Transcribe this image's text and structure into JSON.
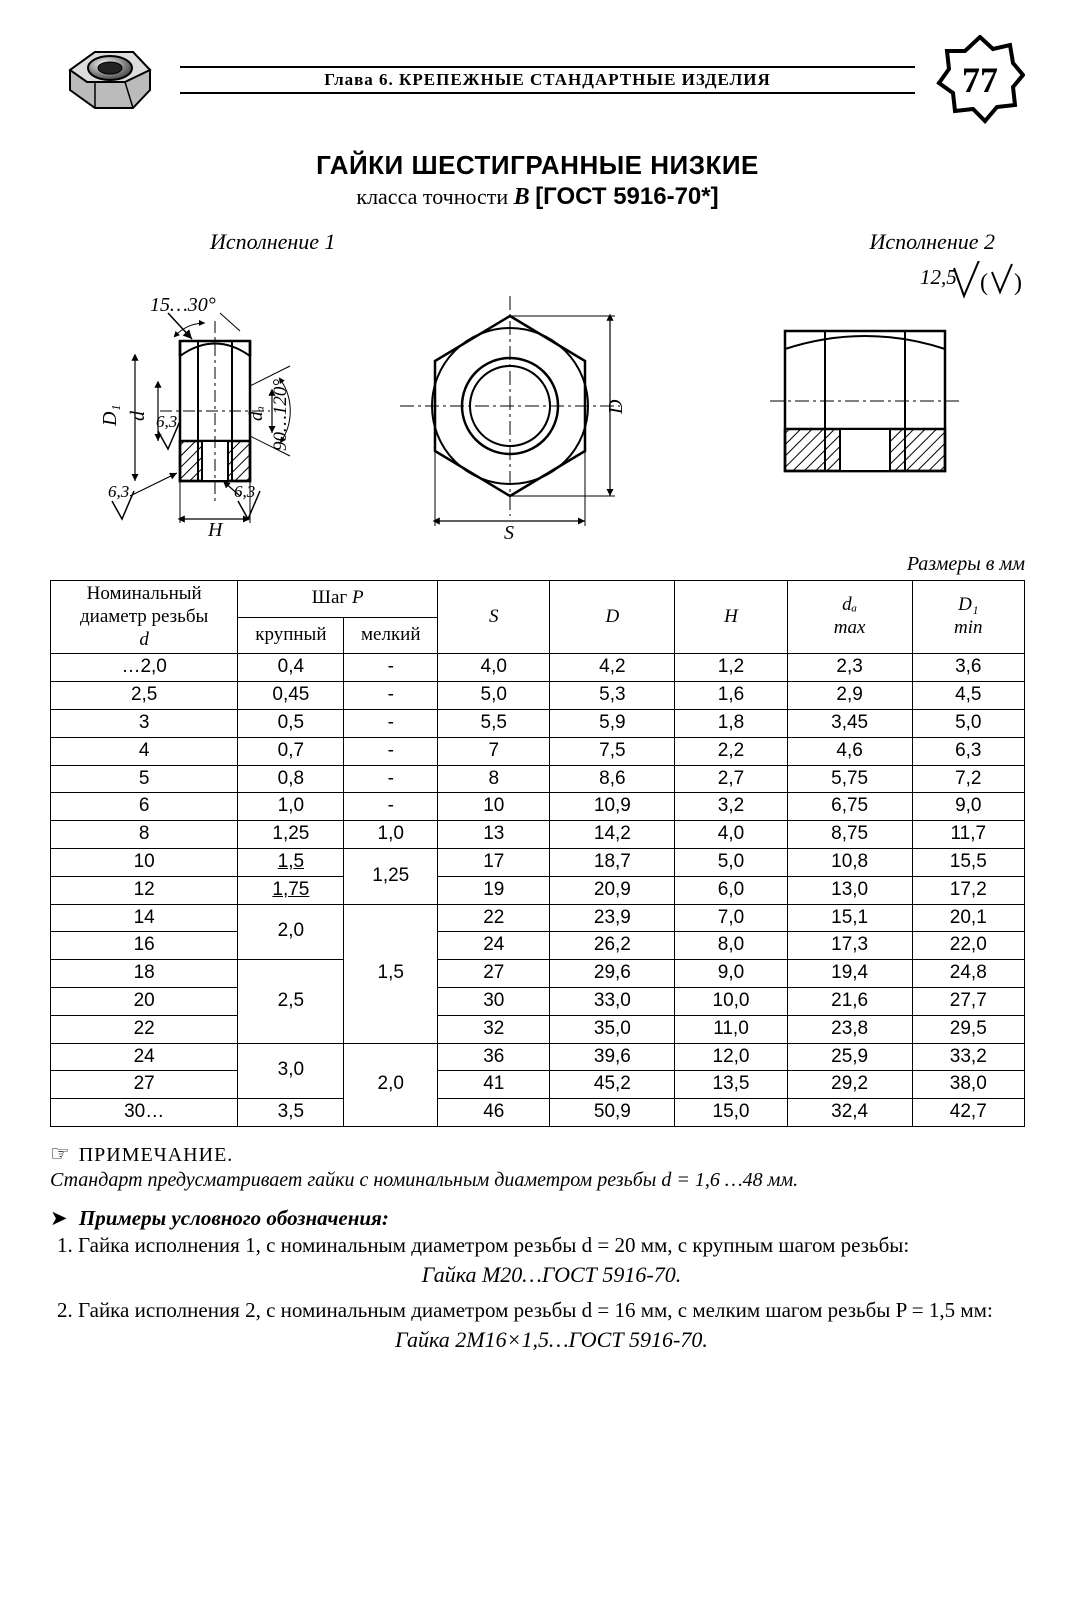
{
  "header": {
    "chapter": "Глава 6.  КРЕПЕЖНЫЕ СТАНДАРТНЫЕ ИЗДЕЛИЯ",
    "page_number": "77"
  },
  "title": {
    "main": "ГАЙКИ ШЕСТИГРАННЫЕ НИЗКИЕ",
    "sub_prefix": "класса точности ",
    "accuracy_class": "B",
    "gost": "[ГОСТ 5916-70*]"
  },
  "executions": {
    "left": "Исполнение 1",
    "right": "Исполнение 2"
  },
  "drawing_labels": {
    "chamfer_angle": "15…30°",
    "cone_angle": "90…120°",
    "ra1": "6,3",
    "ra2": "6,3",
    "ra3": "6,3",
    "surface_mark": "12,5",
    "dim_D1": "D₁",
    "dim_d": "d",
    "dim_da": "dₐ",
    "dim_D": "D",
    "dim_H": "H",
    "dim_S": "S"
  },
  "size_note": "Размеры в мм",
  "table": {
    "headers": {
      "d_label": "Номинальный диаметр резьбы",
      "d_sym": "d",
      "pitch_group": "Шаг",
      "pitch_sym": "P",
      "pitch_coarse": "крупный",
      "pitch_fine": "мелкий",
      "S": "S",
      "D": "D",
      "H": "H",
      "da": "dₐ",
      "da_sub": "max",
      "D1": "D₁",
      "D1_sub": "min"
    },
    "rows": [
      {
        "d": "…2,0",
        "pc": "0,4",
        "pf": "-",
        "S": "4,0",
        "D": "4,2",
        "H": "1,2",
        "da": "2,3",
        "D1": "3,6",
        "pf_rs": 1,
        "pc_rs": 1
      },
      {
        "d": "2,5",
        "pc": "0,45",
        "pf": "-",
        "S": "5,0",
        "D": "5,3",
        "H": "1,6",
        "da": "2,9",
        "D1": "4,5",
        "pf_rs": 1,
        "pc_rs": 1
      },
      {
        "d": "3",
        "pc": "0,5",
        "pf": "-",
        "S": "5,5",
        "D": "5,9",
        "H": "1,8",
        "da": "3,45",
        "D1": "5,0",
        "pf_rs": 1,
        "pc_rs": 1
      },
      {
        "d": "4",
        "pc": "0,7",
        "pf": "-",
        "S": "7",
        "D": "7,5",
        "H": "2,2",
        "da": "4,6",
        "D1": "6,3",
        "pf_rs": 1,
        "pc_rs": 1
      },
      {
        "d": "5",
        "pc": "0,8",
        "pf": "-",
        "S": "8",
        "D": "8,6",
        "H": "2,7",
        "da": "5,75",
        "D1": "7,2",
        "pf_rs": 1,
        "pc_rs": 1
      },
      {
        "d": "6",
        "pc": "1,0",
        "pf": "-",
        "S": "10",
        "D": "10,9",
        "H": "3,2",
        "da": "6,75",
        "D1": "9,0",
        "pf_rs": 1,
        "pc_rs": 1
      },
      {
        "d": "8",
        "pc": "1,25",
        "pf": "1,0",
        "S": "13",
        "D": "14,2",
        "H": "4,0",
        "da": "8,75",
        "D1": "11,7",
        "pf_rs": 1,
        "pc_rs": 1
      },
      {
        "d": "10",
        "pc": "1,5",
        "pf": "1,25",
        "S": "17",
        "D": "18,7",
        "H": "5,0",
        "da": "10,8",
        "D1": "15,5",
        "pc_under": true,
        "pf_rs": 2,
        "pc_rs": 1
      },
      {
        "d": "12",
        "pc": "1,75",
        "pf": null,
        "S": "19",
        "D": "20,9",
        "H": "6,0",
        "da": "13,0",
        "D1": "17,2",
        "pc_under": true,
        "pc_rs": 1
      },
      {
        "d": "14",
        "pc": "2,0",
        "pf": "1,5",
        "S": "22",
        "D": "23,9",
        "H": "7,0",
        "da": "15,1",
        "D1": "20,1",
        "pf_rs": 5,
        "pc_rs": 2
      },
      {
        "d": "16",
        "pc": null,
        "pf": null,
        "S": "24",
        "D": "26,2",
        "H": "8,0",
        "da": "17,3",
        "D1": "22,0"
      },
      {
        "d": "18",
        "pc": "2,5",
        "pf": null,
        "S": "27",
        "D": "29,6",
        "H": "9,0",
        "da": "19,4",
        "D1": "24,8",
        "pc_rs": 3
      },
      {
        "d": "20",
        "pc": null,
        "pf": null,
        "S": "30",
        "D": "33,0",
        "H": "10,0",
        "da": "21,6",
        "D1": "27,7"
      },
      {
        "d": "22",
        "pc": null,
        "pf": null,
        "S": "32",
        "D": "35,0",
        "H": "11,0",
        "da": "23,8",
        "D1": "29,5"
      },
      {
        "d": "24",
        "pc": "3,0",
        "pf": "2,0",
        "S": "36",
        "D": "39,6",
        "H": "12,0",
        "da": "25,9",
        "D1": "33,2",
        "pf_rs": 3,
        "pc_rs": 2
      },
      {
        "d": "27",
        "pc": null,
        "pf": null,
        "S": "41",
        "D": "45,2",
        "H": "13,5",
        "da": "29,2",
        "D1": "38,0"
      },
      {
        "d": "30…",
        "pc": "3,5",
        "pf": null,
        "S": "46",
        "D": "50,9",
        "H": "15,0",
        "da": "32,4",
        "D1": "42,7",
        "pc_rs": 1
      }
    ]
  },
  "note": {
    "heading": "ПРИМЕЧАНИЕ.",
    "body": "Стандарт предусматривает гайки с номинальным диаметром резьбы d = 1,6 …48 мм."
  },
  "examples": {
    "heading": "Примеры условного обозначения:",
    "items": [
      {
        "text": "Гайка исполнения 1, с номинальным диаметром резьбы d = 20 мм, с крупным шагом резьбы:",
        "formula": "Гайка М20…ГОСТ 5916-70."
      },
      {
        "text": "Гайка исполнения 2, с номинальным диаметром резьбы d = 16 мм, с мелким шагом резьбы P = 1,5 мм:",
        "formula": "Гайка 2М16×1,5…ГОСТ 5916-70."
      }
    ]
  },
  "style": {
    "border_color": "#000000",
    "background": "#ffffff",
    "hatch_color": "#000000"
  }
}
